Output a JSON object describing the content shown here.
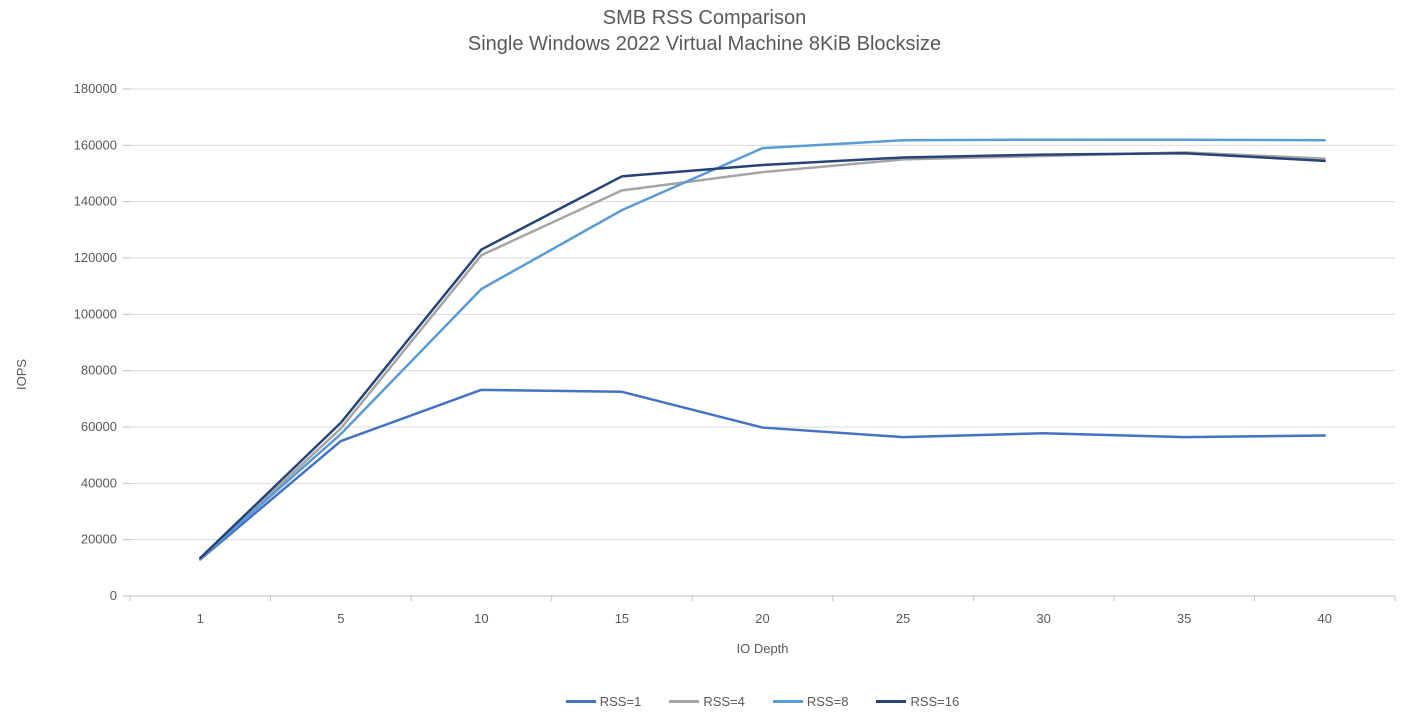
{
  "chart_data": {
    "type": "line",
    "title": "SMB RSS Comparison",
    "subtitle": "Single Windows 2022 Virtual Machine 8KiB Blocksize",
    "xlabel": "IO Depth",
    "ylabel": "IOPS",
    "categories": [
      1,
      5,
      10,
      15,
      20,
      25,
      30,
      35,
      40
    ],
    "series": [
      {
        "name": "RSS=1",
        "color": "#4472C4",
        "values": [
          13000,
          55000,
          73200,
          72500,
          59800,
          56400,
          57800,
          56400,
          57000
        ]
      },
      {
        "name": "RSS=4",
        "color": "#A5A5A5",
        "values": [
          13200,
          59500,
          121000,
          144000,
          150500,
          155000,
          156200,
          157500,
          155300
        ]
      },
      {
        "name": "RSS=8",
        "color": "#5B9BD5",
        "values": [
          13400,
          57500,
          109000,
          137000,
          159000,
          161800,
          162000,
          162000,
          161800
        ]
      },
      {
        "name": "RSS=16",
        "color": "#264478",
        "values": [
          13500,
          61500,
          123000,
          149000,
          153000,
          155700,
          156700,
          157200,
          154500
        ]
      }
    ],
    "y_ticks": [
      0,
      20000,
      40000,
      60000,
      80000,
      100000,
      120000,
      140000,
      160000,
      180000
    ],
    "ylim": [
      0,
      180000
    ],
    "grid": "horizontal",
    "legend_position": "bottom",
    "grid_color": "#D9D9D9",
    "tick_color": "#BFBFBF",
    "text_color": "#595959"
  }
}
